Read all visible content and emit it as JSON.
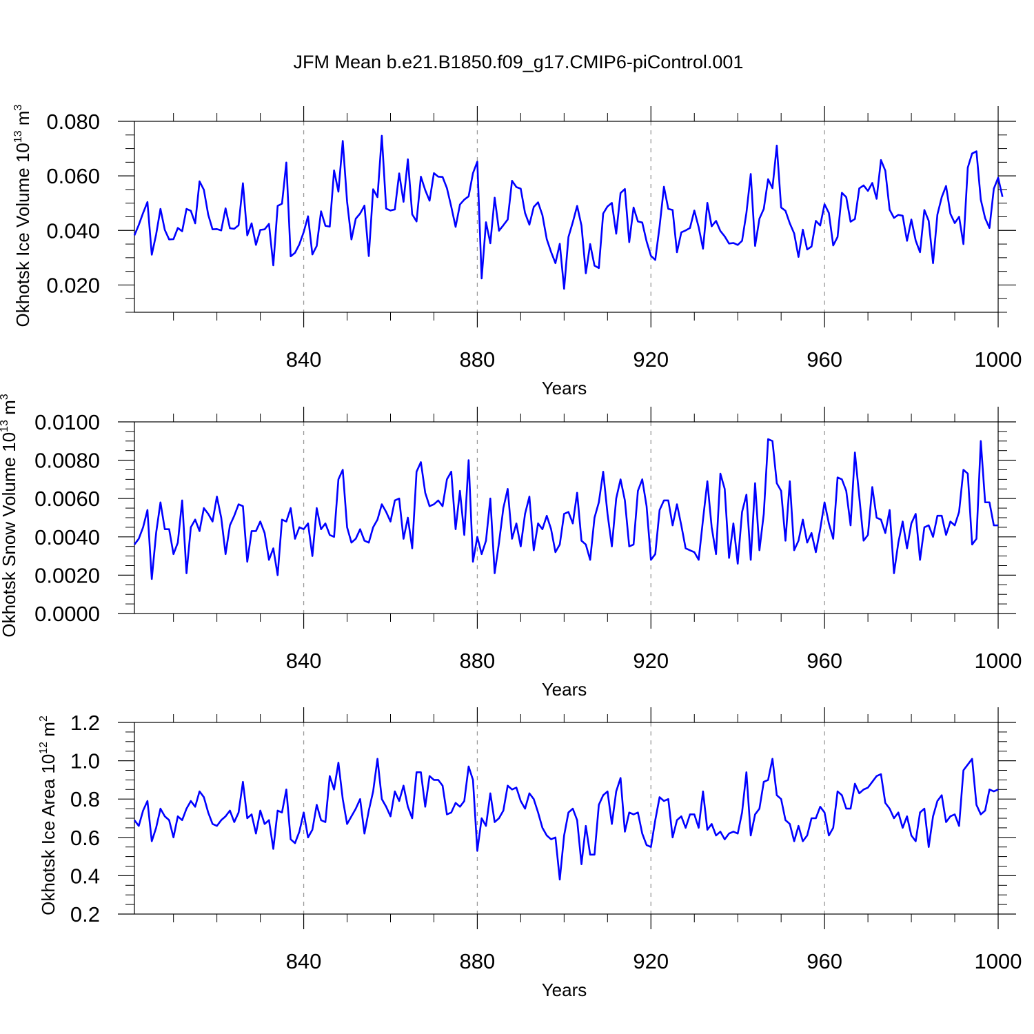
{
  "title": "JFM Mean b.e21.B1850.f09_g17.CMIP6-piControl.001",
  "chart_data": [
    {
      "type": "line",
      "ylabel_main": "Okhotsk Ice Volume 10",
      "ylabel_exp": "13",
      "ylabel_unit": " m",
      "ylabel_unit_exp": "3",
      "xlabel": "Years",
      "xlim": [
        801,
        1000
      ],
      "ylim": [
        0.01,
        0.08
      ],
      "yticks": [
        0.02,
        0.04,
        0.06,
        0.08
      ],
      "ytick_labels": [
        "0.020",
        "0.040",
        "0.060",
        "0.080"
      ],
      "yminor_step": 0.005,
      "xticks": [
        840,
        880,
        920,
        960,
        1000
      ],
      "xtick_labels": [
        "840",
        "880",
        "920",
        "960",
        "1000"
      ],
      "xminor_step": 10,
      "grid": "vertical dashed at labelled years",
      "series": [
        {
          "name": "Okhotsk Ice Volume",
          "color": "#0000ff",
          "x_start": 801,
          "x_step": 1,
          "values": [
            0.0382,
            0.042,
            0.0464,
            0.0504,
            0.0311,
            0.0385,
            0.0479,
            0.0402,
            0.0367,
            0.0368,
            0.0409,
            0.0397,
            0.0479,
            0.0472,
            0.0426,
            0.058,
            0.0549,
            0.0458,
            0.0404,
            0.0405,
            0.04,
            0.0481,
            0.0408,
            0.0406,
            0.0419,
            0.0573,
            0.0382,
            0.0426,
            0.0347,
            0.0402,
            0.0404,
            0.0424,
            0.0272,
            0.049,
            0.0498,
            0.0649,
            0.0305,
            0.0318,
            0.0349,
            0.0394,
            0.0452,
            0.0312,
            0.0343,
            0.047,
            0.0417,
            0.0414,
            0.062,
            0.0542,
            0.0728,
            0.0505,
            0.0367,
            0.0443,
            0.0462,
            0.0491,
            0.0306,
            0.0551,
            0.0522,
            0.0747,
            0.048,
            0.0473,
            0.0477,
            0.0609,
            0.0505,
            0.0661,
            0.0459,
            0.0433,
            0.0597,
            0.0548,
            0.0509,
            0.061,
            0.0597,
            0.0596,
            0.0555,
            0.0487,
            0.0413,
            0.0495,
            0.0513,
            0.0525,
            0.061,
            0.0652,
            0.0224,
            0.043,
            0.0353,
            0.052,
            0.0399,
            0.0419,
            0.044,
            0.0582,
            0.0559,
            0.0553,
            0.0464,
            0.0421,
            0.0486,
            0.0503,
            0.0456,
            0.0368,
            0.0321,
            0.028,
            0.0351,
            0.0186,
            0.0376,
            0.043,
            0.049,
            0.0418,
            0.0243,
            0.035,
            0.0271,
            0.0262,
            0.0462,
            0.0488,
            0.0501,
            0.0388,
            0.0537,
            0.0552,
            0.0357,
            0.0484,
            0.0433,
            0.0429,
            0.036,
            0.0307,
            0.0292,
            0.0415,
            0.056,
            0.0479,
            0.0475,
            0.032,
            0.0393,
            0.04,
            0.0409,
            0.0473,
            0.0412,
            0.0333,
            0.0501,
            0.0415,
            0.0435,
            0.0398,
            0.0378,
            0.0352,
            0.0354,
            0.0347,
            0.0362,
            0.0464,
            0.0607,
            0.0343,
            0.0443,
            0.0479,
            0.0588,
            0.0555,
            0.0711,
            0.0484,
            0.0472,
            0.0426,
            0.0389,
            0.0303,
            0.0403,
            0.033,
            0.0341,
            0.0435,
            0.0418,
            0.0496,
            0.0464,
            0.0345,
            0.0376,
            0.0538,
            0.0522,
            0.0432,
            0.0442,
            0.0554,
            0.0565,
            0.0545,
            0.0574,
            0.0516,
            0.0658,
            0.0619,
            0.0476,
            0.0446,
            0.0457,
            0.0454,
            0.0362,
            0.044,
            0.0363,
            0.032,
            0.0475,
            0.0435,
            0.028,
            0.0458,
            0.0522,
            0.0563,
            0.0461,
            0.0427,
            0.045,
            0.035,
            0.063,
            0.0682,
            0.069,
            0.0513,
            0.0445,
            0.0409,
            0.0553,
            0.0593,
            0.0523
          ]
        }
      ]
    },
    {
      "type": "line",
      "ylabel_main": "Okhotsk Snow Volume 10",
      "ylabel_exp": "13",
      "ylabel_unit": " m",
      "ylabel_unit_exp": "3",
      "xlabel": "Years",
      "xlim": [
        801,
        1000
      ],
      "ylim": [
        0.0,
        0.01
      ],
      "yticks": [
        0.0,
        0.002,
        0.004,
        0.006,
        0.008,
        0.01
      ],
      "ytick_labels": [
        "0.0000",
        "0.0020",
        "0.0040",
        "0.0060",
        "0.0080",
        "0.0100"
      ],
      "yminor_step": 0.0005,
      "xticks": [
        840,
        880,
        920,
        960,
        1000
      ],
      "xtick_labels": [
        "840",
        "880",
        "920",
        "960",
        "1000"
      ],
      "xminor_step": 10,
      "grid": "vertical dashed at labelled years",
      "series": [
        {
          "name": "Okhotsk Snow Volume",
          "color": "#0000ff",
          "x_start": 801,
          "x_step": 1,
          "values": [
            0.0036,
            0.0039,
            0.0045,
            0.0054,
            0.0018,
            0.0042,
            0.0058,
            0.0044,
            0.0044,
            0.0031,
            0.0037,
            0.0059,
            0.0021,
            0.0045,
            0.0049,
            0.0043,
            0.0055,
            0.0052,
            0.0048,
            0.0061,
            0.005,
            0.0031,
            0.0046,
            0.0051,
            0.0057,
            0.0056,
            0.0027,
            0.0043,
            0.0043,
            0.0048,
            0.0042,
            0.0028,
            0.0034,
            0.002,
            0.0049,
            0.0048,
            0.0055,
            0.0039,
            0.0045,
            0.0044,
            0.0047,
            0.003,
            0.0055,
            0.0044,
            0.0047,
            0.0041,
            0.004,
            0.007,
            0.0075,
            0.0045,
            0.0037,
            0.0039,
            0.0044,
            0.0038,
            0.0037,
            0.0045,
            0.0049,
            0.0057,
            0.0053,
            0.0048,
            0.0059,
            0.006,
            0.0039,
            0.005,
            0.0034,
            0.0074,
            0.0079,
            0.0063,
            0.0056,
            0.0057,
            0.0059,
            0.0056,
            0.007,
            0.0074,
            0.0044,
            0.0064,
            0.0041,
            0.008,
            0.0027,
            0.004,
            0.0031,
            0.0038,
            0.006,
            0.0021,
            0.0037,
            0.0055,
            0.0065,
            0.0039,
            0.0047,
            0.0035,
            0.0052,
            0.0061,
            0.0033,
            0.0047,
            0.0044,
            0.0051,
            0.0044,
            0.0032,
            0.0036,
            0.0052,
            0.0053,
            0.0047,
            0.0063,
            0.0038,
            0.0036,
            0.0028,
            0.005,
            0.0058,
            0.0074,
            0.0052,
            0.0035,
            0.006,
            0.007,
            0.0059,
            0.0035,
            0.0036,
            0.0064,
            0.007,
            0.0056,
            0.0028,
            0.0031,
            0.0054,
            0.0059,
            0.0059,
            0.0046,
            0.0057,
            0.0046,
            0.0034,
            0.0033,
            0.0032,
            0.0028,
            0.0049,
            0.0069,
            0.0045,
            0.0031,
            0.0073,
            0.0065,
            0.0029,
            0.0047,
            0.0026,
            0.0053,
            0.0062,
            0.0028,
            0.0068,
            0.0033,
            0.0052,
            0.0091,
            0.009,
            0.0068,
            0.0064,
            0.0038,
            0.0069,
            0.0033,
            0.0038,
            0.0049,
            0.0037,
            0.0042,
            0.0032,
            0.0044,
            0.0058,
            0.0047,
            0.0039,
            0.0071,
            0.007,
            0.0064,
            0.0046,
            0.0084,
            0.0061,
            0.0038,
            0.0041,
            0.0066,
            0.005,
            0.0049,
            0.0042,
            0.0054,
            0.0021,
            0.0037,
            0.0048,
            0.0034,
            0.0047,
            0.0052,
            0.0028,
            0.0045,
            0.0046,
            0.004,
            0.0051,
            0.0051,
            0.0041,
            0.0048,
            0.0046,
            0.0053,
            0.0075,
            0.0073,
            0.0036,
            0.0039,
            0.009,
            0.0058,
            0.0058,
            0.0046,
            0.0046
          ]
        }
      ]
    },
    {
      "type": "line",
      "ylabel_main": "Okhotsk Ice Area 10",
      "ylabel_exp": "12",
      "ylabel_unit": " m",
      "ylabel_unit_exp": "2",
      "xlabel": "Years",
      "xlim": [
        801,
        1000
      ],
      "ylim": [
        0.2,
        1.2
      ],
      "yticks": [
        0.2,
        0.4,
        0.6,
        0.8,
        1.0,
        1.2
      ],
      "ytick_labels": [
        "0.2",
        "0.4",
        "0.6",
        "0.8",
        "1.0",
        "1.2"
      ],
      "yminor_step": 0.05,
      "xticks": [
        840,
        880,
        920,
        960,
        1000
      ],
      "xtick_labels": [
        "840",
        "880",
        "920",
        "960",
        "1000"
      ],
      "xminor_step": 10,
      "grid": "vertical dashed at labelled years",
      "series": [
        {
          "name": "Okhotsk Ice Area",
          "color": "#0000ff",
          "x_start": 801,
          "x_step": 1,
          "values": [
            0.69,
            0.66,
            0.74,
            0.79,
            0.58,
            0.65,
            0.75,
            0.71,
            0.69,
            0.6,
            0.71,
            0.69,
            0.75,
            0.79,
            0.76,
            0.84,
            0.81,
            0.73,
            0.67,
            0.66,
            0.69,
            0.71,
            0.74,
            0.68,
            0.73,
            0.89,
            0.7,
            0.72,
            0.62,
            0.74,
            0.67,
            0.69,
            0.54,
            0.74,
            0.73,
            0.85,
            0.59,
            0.57,
            0.63,
            0.73,
            0.6,
            0.64,
            0.77,
            0.69,
            0.68,
            0.92,
            0.85,
            0.99,
            0.8,
            0.67,
            0.71,
            0.75,
            0.8,
            0.62,
            0.74,
            0.84,
            1.01,
            0.8,
            0.76,
            0.71,
            0.84,
            0.79,
            0.87,
            0.76,
            0.7,
            0.94,
            0.94,
            0.76,
            0.92,
            0.9,
            0.9,
            0.87,
            0.72,
            0.73,
            0.78,
            0.76,
            0.79,
            0.97,
            0.9,
            0.53,
            0.7,
            0.66,
            0.83,
            0.68,
            0.7,
            0.74,
            0.87,
            0.85,
            0.86,
            0.79,
            0.75,
            0.83,
            0.8,
            0.73,
            0.65,
            0.61,
            0.59,
            0.6,
            0.38,
            0.61,
            0.73,
            0.75,
            0.69,
            0.46,
            0.66,
            0.51,
            0.51,
            0.77,
            0.82,
            0.84,
            0.67,
            0.84,
            0.91,
            0.63,
            0.73,
            0.72,
            0.73,
            0.62,
            0.56,
            0.55,
            0.69,
            0.81,
            0.79,
            0.8,
            0.6,
            0.69,
            0.71,
            0.65,
            0.72,
            0.72,
            0.65,
            0.84,
            0.64,
            0.67,
            0.61,
            0.63,
            0.59,
            0.62,
            0.63,
            0.62,
            0.73,
            0.94,
            0.61,
            0.72,
            0.75,
            0.89,
            0.9,
            1.01,
            0.82,
            0.8,
            0.69,
            0.67,
            0.58,
            0.66,
            0.58,
            0.61,
            0.7,
            0.7,
            0.76,
            0.73,
            0.61,
            0.65,
            0.84,
            0.82,
            0.75,
            0.75,
            0.88,
            0.83,
            0.85,
            0.86,
            0.89,
            0.92,
            0.93,
            0.78,
            0.75,
            0.7,
            0.73,
            0.65,
            0.71,
            0.61,
            0.58,
            0.73,
            0.75,
            0.55,
            0.71,
            0.79,
            0.82,
            0.68,
            0.71,
            0.72,
            0.66,
            0.95,
            0.98,
            1.01,
            0.77,
            0.72,
            0.74,
            0.85,
            0.84,
            0.85
          ]
        }
      ]
    }
  ]
}
